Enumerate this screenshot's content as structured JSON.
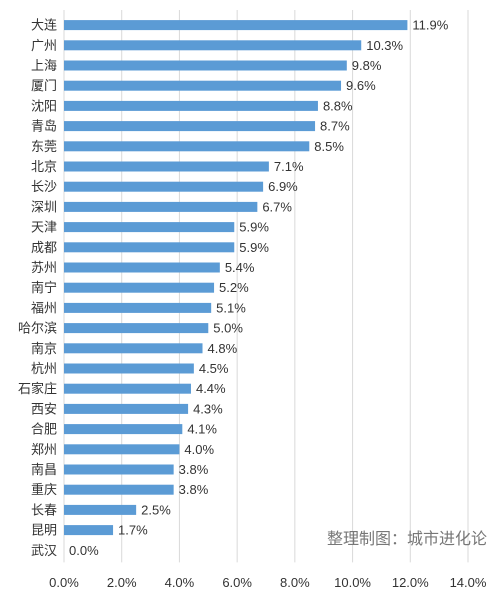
{
  "chart_data": {
    "type": "bar",
    "orientation": "horizontal",
    "categories": [
      "大连",
      "广州",
      "上海",
      "厦门",
      "沈阳",
      "青岛",
      "东莞",
      "北京",
      "长沙",
      "深圳",
      "天津",
      "成都",
      "苏州",
      "南宁",
      "福州",
      "哈尔滨",
      "南京",
      "杭州",
      "石家庄",
      "西安",
      "合肥",
      "郑州",
      "南昌",
      "重庆",
      "长春",
      "昆明",
      "武汉"
    ],
    "values": [
      11.9,
      10.3,
      9.8,
      9.6,
      8.8,
      8.7,
      8.5,
      7.1,
      6.9,
      6.7,
      5.9,
      5.9,
      5.4,
      5.2,
      5.1,
      5.0,
      4.8,
      4.5,
      4.4,
      4.3,
      4.1,
      4.0,
      3.8,
      3.8,
      2.5,
      1.7,
      0.0
    ],
    "value_labels": [
      "11.9%",
      "10.3%",
      "9.8%",
      "9.6%",
      "8.8%",
      "8.7%",
      "8.5%",
      "7.1%",
      "6.9%",
      "6.7%",
      "5.9%",
      "5.9%",
      "5.4%",
      "5.2%",
      "5.1%",
      "5.0%",
      "4.8%",
      "4.5%",
      "4.4%",
      "4.3%",
      "4.1%",
      "4.0%",
      "3.8%",
      "3.8%",
      "2.5%",
      "1.7%",
      "0.0%"
    ],
    "xlim": [
      0,
      14
    ],
    "x_ticks": [
      "0.0%",
      "2.0%",
      "4.0%",
      "6.0%",
      "8.0%",
      "10.0%",
      "12.0%",
      "14.0%"
    ],
    "grid": "vertical",
    "bar_color": "#5b9bd5",
    "grid_color": "#d9d9d9",
    "title": "",
    "xlabel": "",
    "ylabel": ""
  },
  "watermark": "整理制图：城市进化论"
}
